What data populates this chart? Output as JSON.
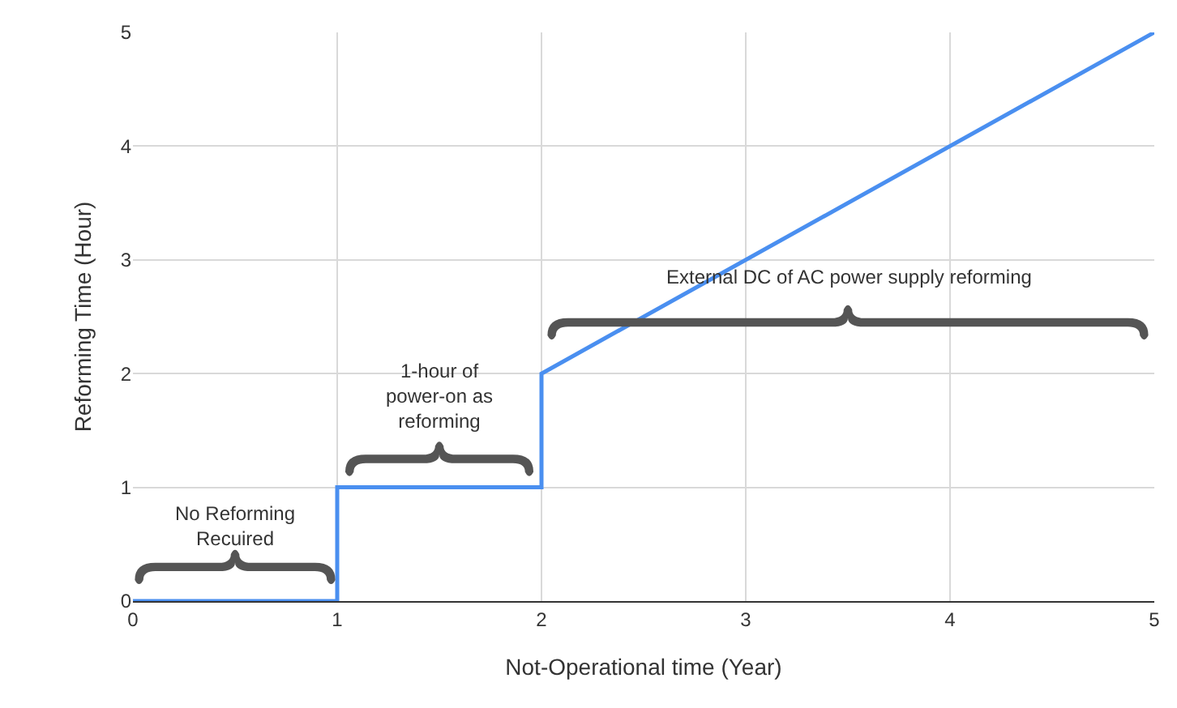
{
  "chart_data": {
    "type": "line",
    "xlabel": "Not-Operational time (Year)",
    "ylabel": "Reforming Time (Hour)",
    "x": [
      0,
      1,
      1,
      2,
      2,
      5
    ],
    "series": [
      {
        "color": "#4a8ff0",
        "values": [
          0,
          0,
          1,
          1,
          2,
          5
        ]
      }
    ],
    "xlim": [
      0,
      5
    ],
    "ylim": [
      0,
      5
    ],
    "xticks": [
      0,
      1,
      2,
      3,
      4,
      5
    ],
    "yticks": [
      0,
      1,
      2,
      3,
      4,
      5
    ],
    "grid": true,
    "marker": "none",
    "line_style": "solid",
    "annotations": [
      "No Reforming\nRecuired",
      "1-hour of\npower-on as\nreforming",
      "External DC of AC power supply reforming"
    ]
  }
}
